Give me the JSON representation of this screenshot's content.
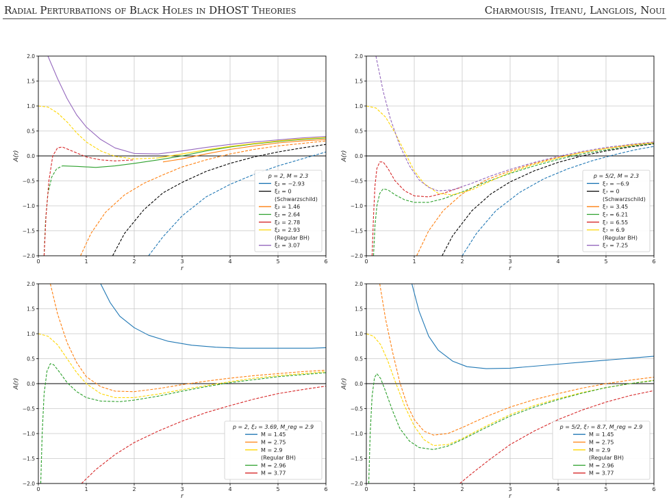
{
  "header": {
    "left_title": "Radial Perturbations of Black Holes in DHOST Theories",
    "right_authors": "Charmousis, Iteanu, Langlois, Noui"
  },
  "chart_data": [
    {
      "type": "line",
      "xlabel": "r",
      "ylabel": "A(r)",
      "xlim": [
        0,
        6
      ],
      "ylim": [
        -2,
        2
      ],
      "xticks": [
        "0",
        "1",
        "2",
        "3",
        "4",
        "5",
        "6"
      ],
      "yticks": [
        "−2.0",
        "−1.5",
        "−1.0",
        "−0.5",
        "0.0",
        "0.5",
        "1.0",
        "1.5",
        "2.0"
      ],
      "grid": true,
      "legend_placement": "lower-right",
      "legend_title": "p = 2,   M = 2.3",
      "series": [
        {
          "name": "ξ₂ = −2.93",
          "color": "#1f77b4",
          "dashed": true,
          "x": [
            2.3,
            2.6,
            3,
            3.5,
            4,
            4.5,
            5,
            5.5,
            6
          ],
          "y": [
            -2.0,
            -1.62,
            -1.2,
            -0.82,
            -0.57,
            -0.37,
            -0.2,
            -0.06,
            0.08
          ]
        },
        {
          "name": "ξ₂ = 0 (Schwarzschild)",
          "color": "#000000",
          "dashed": true,
          "x": [
            1.55,
            1.8,
            2.2,
            2.6,
            3,
            3.5,
            4,
            4.5,
            5,
            5.5,
            6
          ],
          "y": [
            -2.0,
            -1.55,
            -1.08,
            -0.74,
            -0.53,
            -0.31,
            -0.15,
            -0.02,
            0.08,
            0.16,
            0.23
          ]
        },
        {
          "name": "ξ₂ = 1.46",
          "color": "#ff7f0e",
          "dashed": true,
          "x": [
            0.88,
            1.1,
            1.4,
            1.8,
            2.2,
            2.6,
            3,
            3.5,
            4,
            4.5,
            5,
            5.5,
            6
          ],
          "y": [
            -2.0,
            -1.55,
            -1.13,
            -0.78,
            -0.55,
            -0.38,
            -0.22,
            -0.08,
            0.04,
            0.13,
            0.2,
            0.25,
            0.3
          ]
        },
        {
          "name": "ξ₂ = 1.46",
          "color": "#ff7f0e",
          "dashed": false,
          "x": [
            2.6,
            3,
            3.5,
            4,
            4.5,
            5,
            5.5,
            6
          ],
          "y": [
            -0.12,
            -0.06,
            0.04,
            0.13,
            0.2,
            0.26,
            0.3,
            0.33
          ]
        },
        {
          "name": "ξ₂ = 2.64",
          "color": "#2ca02c",
          "dashed": true,
          "x": [
            0.12,
            0.15,
            0.2,
            0.28,
            0.38,
            0.5
          ],
          "y": [
            -2.0,
            -1.3,
            -0.75,
            -0.42,
            -0.26,
            -0.2
          ]
        },
        {
          "name": "ξ₂ = 2.64",
          "color": "#2ca02c",
          "dashed": false,
          "x": [
            0.5,
            0.8,
            1.2,
            1.6,
            2,
            2.5,
            3,
            3.5,
            4,
            4.5,
            5,
            5.5,
            6
          ],
          "y": [
            -0.2,
            -0.21,
            -0.23,
            -0.2,
            -0.15,
            -0.08,
            0,
            0.1,
            0.18,
            0.24,
            0.29,
            0.33,
            0.36
          ]
        },
        {
          "name": "ξ₂ = 2.78",
          "color": "#d62728",
          "dashed": true,
          "x": [
            0.12,
            0.16,
            0.22,
            0.3,
            0.4,
            0.5,
            0.7,
            1,
            1.3,
            1.6,
            2
          ],
          "y": [
            -2.0,
            -1.2,
            -0.5,
            0,
            0.16,
            0.18,
            0.1,
            -0.02,
            -0.08,
            -0.1,
            -0.08
          ]
        },
        {
          "name": "ξ₂ = 2.93 (Regular BH)",
          "color": "#ffd700",
          "dashed": true,
          "x": [
            0,
            0.2,
            0.4,
            0.6,
            0.8,
            1,
            1.3,
            1.6,
            2,
            2.5
          ],
          "y": [
            1.0,
            0.98,
            0.86,
            0.68,
            0.46,
            0.28,
            0.1,
            -0.01,
            -0.06,
            -0.04
          ]
        },
        {
          "name": "ξ₂ = 2.93 (Regular BH)",
          "color": "#ffd700",
          "dashed": false,
          "x": [
            2.5,
            3,
            3.5,
            4,
            4.5,
            5,
            5.5,
            6
          ],
          "y": [
            -0.04,
            0.04,
            0.12,
            0.19,
            0.25,
            0.3,
            0.34,
            0.37
          ]
        },
        {
          "name": "ξ₂ = 3.07",
          "color": "#9467bd",
          "dashed": false,
          "x": [
            0.2,
            0.4,
            0.6,
            0.8,
            1,
            1.3,
            1.6,
            2,
            2.5,
            3,
            3.5,
            4,
            4.5,
            5,
            5.5,
            6
          ],
          "y": [
            2.0,
            1.55,
            1.15,
            0.82,
            0.58,
            0.33,
            0.16,
            0.05,
            0.04,
            0.1,
            0.17,
            0.23,
            0.28,
            0.32,
            0.36,
            0.39
          ]
        }
      ]
    },
    {
      "type": "line",
      "xlabel": "r",
      "ylabel": "A(r)",
      "xlim": [
        0,
        6
      ],
      "ylim": [
        -2,
        2
      ],
      "xticks": [
        "0",
        "1",
        "2",
        "3",
        "4",
        "5",
        "6"
      ],
      "yticks": [
        "−2.0",
        "−1.5",
        "−1.0",
        "−0.5",
        "0.0",
        "0.5",
        "1.0",
        "1.5",
        "2.0"
      ],
      "grid": true,
      "legend_placement": "lower-right",
      "legend_title": "p = 5/2,   M = 2.3",
      "series": [
        {
          "name": "ξ₇ = −6.9",
          "color": "#1f77b4",
          "dashed": true,
          "x": [
            2,
            2.3,
            2.7,
            3.2,
            3.7,
            4.2,
            4.7,
            5.2,
            5.6,
            6
          ],
          "y": [
            -2.0,
            -1.55,
            -1.1,
            -0.73,
            -0.46,
            -0.26,
            -0.1,
            0.03,
            0.12,
            0.19
          ]
        },
        {
          "name": "ξ₇ = 0 (Schwarzschild)",
          "color": "#000000",
          "dashed": true,
          "x": [
            1.58,
            1.8,
            2.2,
            2.6,
            3,
            3.5,
            4,
            4.5,
            5,
            5.5,
            6
          ],
          "y": [
            -2.0,
            -1.6,
            -1.1,
            -0.76,
            -0.52,
            -0.3,
            -0.13,
            0,
            0.1,
            0.18,
            0.24
          ]
        },
        {
          "name": "ξ₇ = 3.45",
          "color": "#ff7f0e",
          "dashed": true,
          "x": [
            1.05,
            1.3,
            1.6,
            2,
            2.5,
            3,
            3.5,
            4,
            4.5,
            5,
            5.5,
            6
          ],
          "y": [
            -2.0,
            -1.5,
            -1.1,
            -0.76,
            -0.48,
            -0.3,
            -0.15,
            -0.03,
            0.07,
            0.15,
            0.21,
            0.26
          ]
        },
        {
          "name": "ξ₇ = 6.21",
          "color": "#2ca02c",
          "dashed": true,
          "x": [
            0.15,
            0.18,
            0.22,
            0.28,
            0.35,
            0.45,
            0.6,
            0.8,
            1,
            1.3,
            1.6,
            2,
            2.5,
            3,
            3.5,
            4,
            4.5,
            5,
            5.5,
            6
          ],
          "y": [
            -2.0,
            -1.4,
            -1.0,
            -0.75,
            -0.66,
            -0.68,
            -0.78,
            -0.88,
            -0.93,
            -0.93,
            -0.86,
            -0.72,
            -0.52,
            -0.35,
            -0.2,
            -0.07,
            0.04,
            0.12,
            0.19,
            0.25
          ]
        },
        {
          "name": "ξ₇ = 6.55",
          "color": "#d62728",
          "dashed": true,
          "x": [
            0.12,
            0.15,
            0.18,
            0.22,
            0.28,
            0.35,
            0.45,
            0.6,
            0.8,
            1,
            1.3,
            1.6,
            2
          ],
          "y": [
            -2.0,
            -1.2,
            -0.6,
            -0.25,
            -0.12,
            -0.12,
            -0.25,
            -0.5,
            -0.7,
            -0.8,
            -0.82,
            -0.75,
            -0.62
          ]
        },
        {
          "name": "ξ₇ = 6.9 (Regular BH)",
          "color": "#ffd700",
          "dashed": true,
          "x": [
            0,
            0.2,
            0.4,
            0.6,
            0.8,
            1,
            1.2,
            1.5,
            1.8,
            2.2,
            2.6,
            3,
            3.5,
            4,
            4.5,
            5,
            5.5,
            6
          ],
          "y": [
            1.0,
            0.96,
            0.78,
            0.46,
            0.08,
            -0.3,
            -0.55,
            -0.75,
            -0.78,
            -0.68,
            -0.5,
            -0.33,
            -0.17,
            -0.04,
            0.07,
            0.15,
            0.22,
            0.27
          ]
        },
        {
          "name": "ξ₇ = 7.25",
          "color": "#9467bd",
          "dashed": true,
          "x": [
            0.2,
            0.35,
            0.5,
            0.7,
            0.9,
            1.1,
            1.3,
            1.5,
            1.8,
            2.2,
            2.6,
            3,
            3.5,
            4,
            4.5,
            5,
            5.5,
            6
          ],
          "y": [
            2.0,
            1.3,
            0.75,
            0.2,
            -0.2,
            -0.48,
            -0.63,
            -0.7,
            -0.68,
            -0.55,
            -0.4,
            -0.27,
            -0.13,
            -0.01,
            0.09,
            0.17,
            0.23,
            0.28
          ]
        }
      ]
    },
    {
      "type": "line",
      "xlabel": "r",
      "ylabel": "A(r)",
      "xlim": [
        0,
        6
      ],
      "ylim": [
        -2,
        2
      ],
      "xticks": [
        "0",
        "1",
        "2",
        "3",
        "4",
        "5",
        "6"
      ],
      "yticks": [
        "−2.0",
        "−1.5",
        "−1.0",
        "−0.5",
        "0.0",
        "0.5",
        "1.0",
        "1.5",
        "2.0"
      ],
      "grid": true,
      "legend_placement": "lower-right",
      "legend_title": "p = 2,   ξ₂ = 3.69,   M_reg = 2.9",
      "series": [
        {
          "name": "M = 1.45",
          "color": "#1f77b4",
          "dashed": false,
          "x": [
            1.3,
            1.5,
            1.7,
            2,
            2.3,
            2.7,
            3.2,
            3.7,
            4.2,
            4.7,
            5.2,
            5.7,
            6
          ],
          "y": [
            2.0,
            1.62,
            1.35,
            1.12,
            0.97,
            0.85,
            0.77,
            0.73,
            0.71,
            0.71,
            0.71,
            0.71,
            0.72
          ]
        },
        {
          "name": "M = 2.75",
          "color": "#ff7f0e",
          "dashed": true,
          "x": [
            0.25,
            0.4,
            0.6,
            0.8,
            1,
            1.3,
            1.6,
            2,
            2.5,
            3,
            3.5,
            4,
            4.5,
            5,
            5.5,
            6
          ],
          "y": [
            2.0,
            1.4,
            0.82,
            0.42,
            0.14,
            -0.06,
            -0.15,
            -0.16,
            -0.1,
            -0.02,
            0.05,
            0.11,
            0.16,
            0.2,
            0.24,
            0.27
          ]
        },
        {
          "name": "M = 2.9 (Regular BH)",
          "color": "#ffd700",
          "dashed": true,
          "x": [
            0,
            0.2,
            0.4,
            0.6,
            0.8,
            1,
            1.3,
            1.6,
            2,
            2.5,
            3,
            3.5,
            4,
            4.5,
            5,
            5.5,
            6
          ],
          "y": [
            1.0,
            0.95,
            0.78,
            0.5,
            0.22,
            0.0,
            -0.2,
            -0.28,
            -0.28,
            -0.21,
            -0.12,
            -0.04,
            0.04,
            0.11,
            0.16,
            0.2,
            0.24
          ]
        },
        {
          "name": "M = 2.96",
          "color": "#2ca02c",
          "dashed": true,
          "x": [
            0.05,
            0.08,
            0.12,
            0.18,
            0.25,
            0.32,
            0.45,
            0.6,
            0.8,
            1,
            1.3,
            1.7,
            2,
            2.5,
            3,
            3.5,
            4,
            4.5,
            5,
            5.5,
            6
          ],
          "y": [
            -2.0,
            -1.0,
            -0.2,
            0.25,
            0.4,
            0.38,
            0.22,
            0.02,
            -0.16,
            -0.28,
            -0.35,
            -0.36,
            -0.33,
            -0.25,
            -0.15,
            -0.06,
            0.02,
            0.08,
            0.14,
            0.18,
            0.22
          ]
        },
        {
          "name": "M = 3.77",
          "color": "#d62728",
          "dashed": true,
          "x": [
            0.9,
            1.2,
            1.6,
            2,
            2.5,
            3,
            3.5,
            4,
            4.5,
            5,
            5.5,
            6
          ],
          "y": [
            -2.0,
            -1.72,
            -1.42,
            -1.18,
            -0.95,
            -0.75,
            -0.58,
            -0.44,
            -0.31,
            -0.2,
            -0.12,
            -0.05
          ]
        }
      ]
    },
    {
      "type": "line",
      "xlabel": "r",
      "ylabel": "A(r)",
      "xlim": [
        0,
        6
      ],
      "ylim": [
        -2,
        2
      ],
      "xticks": [
        "0",
        "1",
        "2",
        "3",
        "4",
        "5",
        "6"
      ],
      "yticks": [
        "−2.0",
        "−1.5",
        "−1.0",
        "−0.5",
        "0.0",
        "0.5",
        "1.0",
        "1.5",
        "2.0"
      ],
      "grid": true,
      "legend_placement": "lower-right",
      "legend_title": "p = 5/2,   ξ₇ = 8.7,   M_reg = 2.9",
      "series": [
        {
          "name": "M = 1.45",
          "color": "#1f77b4",
          "dashed": false,
          "x": [
            0.95,
            1.1,
            1.3,
            1.5,
            1.8,
            2.1,
            2.5,
            3,
            3.5,
            4,
            4.5,
            5,
            5.5,
            6
          ],
          "y": [
            2.0,
            1.45,
            0.95,
            0.67,
            0.45,
            0.34,
            0.3,
            0.31,
            0.35,
            0.39,
            0.43,
            0.47,
            0.51,
            0.55
          ]
        },
        {
          "name": "M = 2.75",
          "color": "#ff7f0e",
          "dashed": true,
          "x": [
            0.28,
            0.4,
            0.55,
            0.7,
            0.85,
            1,
            1.2,
            1.4,
            1.7,
            2,
            2.5,
            3,
            3.5,
            4,
            4.5,
            5,
            5.5,
            6
          ],
          "y": [
            2.0,
            1.3,
            0.62,
            0.02,
            -0.42,
            -0.72,
            -0.95,
            -1.03,
            -1.0,
            -0.88,
            -0.66,
            -0.47,
            -0.32,
            -0.2,
            -0.09,
            0,
            0.07,
            0.13
          ]
        },
        {
          "name": "M = 2.9 (Regular BH)",
          "color": "#ffd700",
          "dashed": true,
          "x": [
            0,
            0.15,
            0.3,
            0.45,
            0.6,
            0.8,
            1,
            1.2,
            1.4,
            1.7,
            2,
            2.5,
            3,
            3.5,
            4,
            4.5,
            5,
            5.5,
            6
          ],
          "y": [
            1.0,
            0.95,
            0.78,
            0.45,
            0.05,
            -0.45,
            -0.85,
            -1.12,
            -1.24,
            -1.22,
            -1.1,
            -0.85,
            -0.62,
            -0.44,
            -0.3,
            -0.18,
            -0.08,
            0.0,
            0.07
          ]
        },
        {
          "name": "M = 2.96",
          "color": "#2ca02c",
          "dashed": true,
          "x": [
            0.05,
            0.08,
            0.12,
            0.17,
            0.22,
            0.3,
            0.4,
            0.55,
            0.7,
            0.9,
            1.1,
            1.4,
            1.7,
            2,
            2.5,
            3,
            3.5,
            4,
            4.5,
            5,
            5.5,
            6
          ],
          "y": [
            -2.0,
            -1.0,
            -0.25,
            0.12,
            0.2,
            0.1,
            -0.15,
            -0.55,
            -0.9,
            -1.15,
            -1.28,
            -1.32,
            -1.25,
            -1.12,
            -0.88,
            -0.65,
            -0.47,
            -0.32,
            -0.19,
            -0.08,
            0.0,
            0.06
          ]
        },
        {
          "name": "M = 3.77",
          "color": "#d62728",
          "dashed": true,
          "x": [
            1.95,
            2.2,
            2.6,
            3,
            3.5,
            4,
            4.5,
            5,
            5.5,
            6
          ],
          "y": [
            -2.0,
            -1.8,
            -1.5,
            -1.22,
            -0.95,
            -0.72,
            -0.53,
            -0.37,
            -0.24,
            -0.14
          ]
        }
      ]
    }
  ]
}
